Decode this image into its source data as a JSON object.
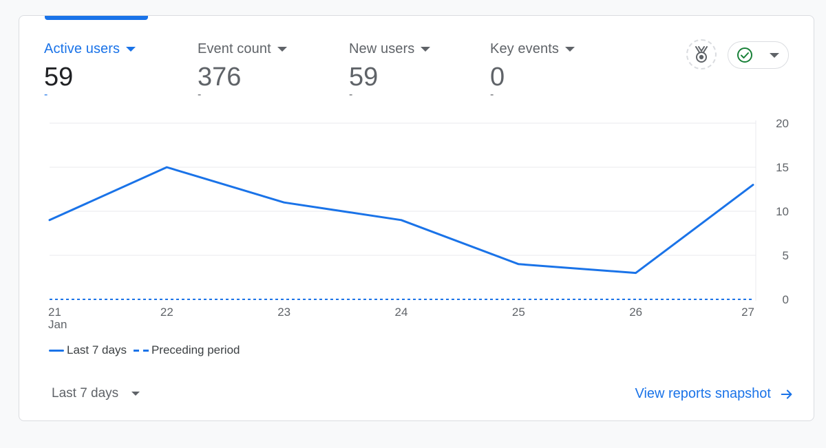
{
  "metrics": [
    {
      "label": "Active users",
      "value": "59",
      "change": "-",
      "active": true
    },
    {
      "label": "Event count",
      "value": "376",
      "change": "-",
      "active": false
    },
    {
      "label": "New users",
      "value": "59",
      "change": "-",
      "active": false
    },
    {
      "label": "Key events",
      "value": "0",
      "change": "-",
      "active": false
    }
  ],
  "colors": {
    "accent": "#1a73e8",
    "success": "#188038",
    "muted": "#5f6368"
  },
  "icons": {
    "insights": "insights-badge-icon",
    "status": "check-circle-icon"
  },
  "chart_data": {
    "type": "line",
    "x": [
      "21",
      "22",
      "23",
      "24",
      "25",
      "26",
      "27"
    ],
    "x_sublabel_first": "Jan",
    "ylim": [
      0,
      20
    ],
    "yticks": [
      "0",
      "5",
      "10",
      "15",
      "20"
    ],
    "grid": true,
    "y_axis_side": "right",
    "series": [
      {
        "name": "Last 7 days",
        "values": [
          9,
          15,
          11,
          9,
          4,
          3,
          13
        ],
        "style": "solid"
      },
      {
        "name": "Preceding period",
        "values": [
          0,
          0,
          0,
          0,
          0,
          0,
          0
        ],
        "style": "dashed"
      }
    ]
  },
  "legend": {
    "current": "Last 7 days",
    "previous": "Preceding period"
  },
  "footer": {
    "date_range": "Last 7 days",
    "view_link": "View reports snapshot"
  }
}
